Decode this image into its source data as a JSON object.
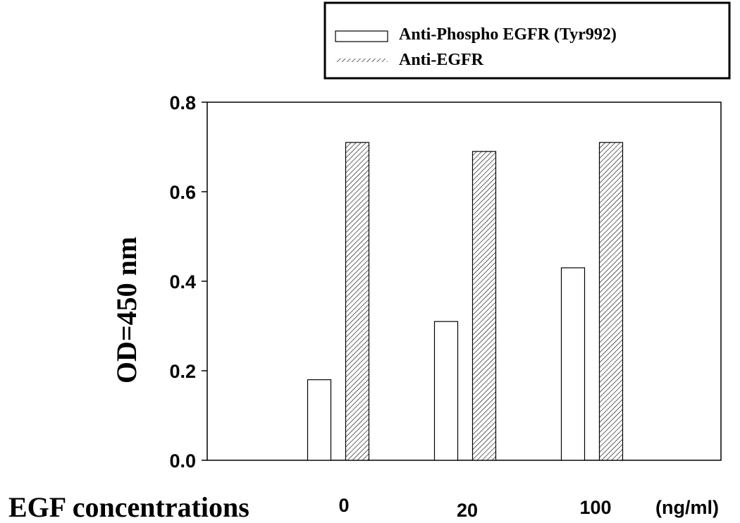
{
  "chart_data": {
    "type": "bar",
    "categories": [
      "0",
      "20",
      "100"
    ],
    "x_unit": "(ng/ml)",
    "xlabel": "EGF concentrations",
    "ylabel": "OD=450 nm",
    "ylim": [
      0,
      0.8
    ],
    "yticks": [
      "0.0",
      "0.2",
      "0.4",
      "0.6",
      "0.8"
    ],
    "grid": false,
    "legend_position": "top-right",
    "series": [
      {
        "name": "Anti-Phospho EGFR (Tyr992)",
        "values": [
          0.18,
          0.31,
          0.43
        ],
        "fill": "#ffffff"
      },
      {
        "name": "Anti-EGFR",
        "values": [
          0.71,
          0.69,
          0.71
        ],
        "fill": "hatched"
      }
    ]
  }
}
